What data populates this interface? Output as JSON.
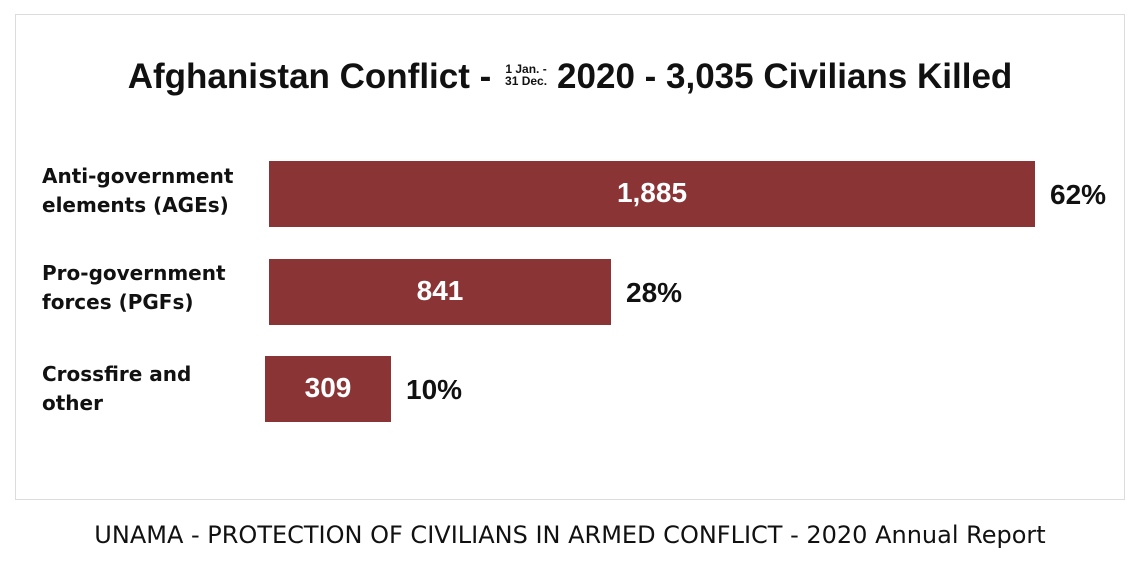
{
  "title": {
    "prefix": "Afghanistan Conflict -",
    "date_top": "1 Jan. -",
    "date_bottom": "31 Dec.",
    "suffix": "2020 - 3,035 Civilians Killed"
  },
  "footer": "UNAMA - PROTECTION OF CIVILIANS IN ARMED CONFLICT - 2020 Annual Report",
  "colors": {
    "bar": "#8b3436",
    "text": "#111111",
    "bar_text": "#ffffff"
  },
  "chart_data": {
    "type": "bar",
    "orientation": "horizontal",
    "title": "Afghanistan Conflict - 1 Jan. - 31 Dec. 2020 - 3,035 Civilians Killed",
    "categories": [
      [
        "Anti-government",
        "elements (AGEs)"
      ],
      [
        "Pro-government",
        "forces (PGFs)"
      ],
      [
        "Crossfire and",
        "other"
      ]
    ],
    "values": [
      1885,
      841,
      309
    ],
    "value_labels": [
      "1,885",
      "841",
      "309"
    ],
    "percent_labels": [
      "62%",
      "28%",
      "10%"
    ],
    "xlim": [
      0,
      1885
    ],
    "grid": false,
    "legend": "none"
  }
}
